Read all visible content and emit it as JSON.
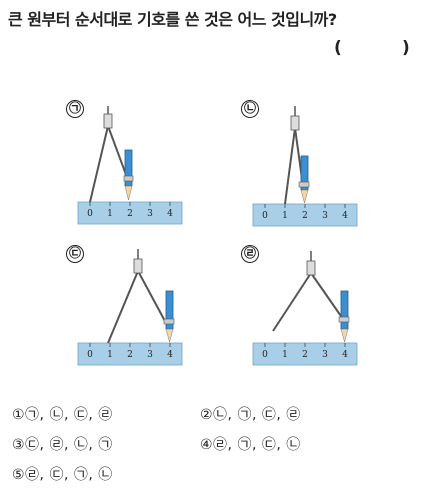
{
  "question": "큰 원부터 순서대로 기호를 쓴 것은 어느 것입니까?",
  "answer_paren_open": "(",
  "answer_paren_close": ")",
  "figures": [
    {
      "label": "㉠",
      "ticks": [
        "0",
        "1",
        "2",
        "3",
        "4"
      ]
    },
    {
      "label": "㉡",
      "ticks": [
        "0",
        "1",
        "2",
        "3",
        "4"
      ]
    },
    {
      "label": "㉢",
      "ticks": [
        "0",
        "1",
        "2",
        "3",
        "4"
      ]
    },
    {
      "label": "㉣",
      "ticks": [
        "0",
        "1",
        "2",
        "3",
        "4"
      ]
    }
  ],
  "choices": [
    "①㉠, ㉡, ㉢, ㉣",
    "②㉡, ㉠, ㉢, ㉣",
    "③㉢, ㉣, ㉡, ㉠",
    "④㉣, ㉠, ㉢, ㉡",
    "⑤㉣, ㉢, ㉠, ㉡"
  ]
}
